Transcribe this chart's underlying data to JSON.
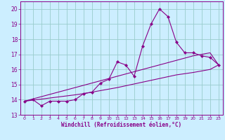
{
  "xlabel": "Windchill (Refroidissement éolien,°C)",
  "bg_color": "#cceeff",
  "grid_color": "#99cccc",
  "line_color": "#880088",
  "x_data": [
    0,
    1,
    2,
    3,
    4,
    5,
    6,
    7,
    8,
    9,
    10,
    11,
    12,
    13,
    14,
    15,
    16,
    17,
    18,
    19,
    20,
    21,
    22,
    23
  ],
  "y_scatter": [
    13.9,
    14.0,
    13.6,
    13.9,
    13.9,
    13.9,
    14.0,
    14.4,
    14.5,
    15.1,
    15.35,
    16.5,
    16.3,
    15.55,
    17.55,
    19.0,
    20.0,
    19.5,
    17.8,
    17.1,
    17.1,
    16.9,
    16.8,
    16.3
  ],
  "y_upper": [
    13.9,
    14.05,
    14.2,
    14.35,
    14.5,
    14.65,
    14.8,
    14.95,
    15.1,
    15.25,
    15.4,
    15.55,
    15.7,
    15.85,
    16.0,
    16.15,
    16.3,
    16.45,
    16.6,
    16.75,
    16.9,
    17.0,
    17.1,
    16.3
  ],
  "y_lower": [
    13.9,
    13.97,
    14.04,
    14.11,
    14.18,
    14.25,
    14.32,
    14.4,
    14.5,
    14.6,
    14.7,
    14.8,
    14.92,
    15.04,
    15.16,
    15.28,
    15.4,
    15.52,
    15.64,
    15.72,
    15.8,
    15.9,
    16.0,
    16.3
  ],
  "ylim": [
    13.0,
    20.5
  ],
  "xlim": [
    -0.5,
    23.5
  ],
  "yticks": [
    13,
    14,
    15,
    16,
    17,
    18,
    19,
    20
  ],
  "xticks": [
    0,
    1,
    2,
    3,
    4,
    5,
    6,
    7,
    8,
    9,
    10,
    11,
    12,
    13,
    14,
    15,
    16,
    17,
    18,
    19,
    20,
    21,
    22,
    23
  ]
}
